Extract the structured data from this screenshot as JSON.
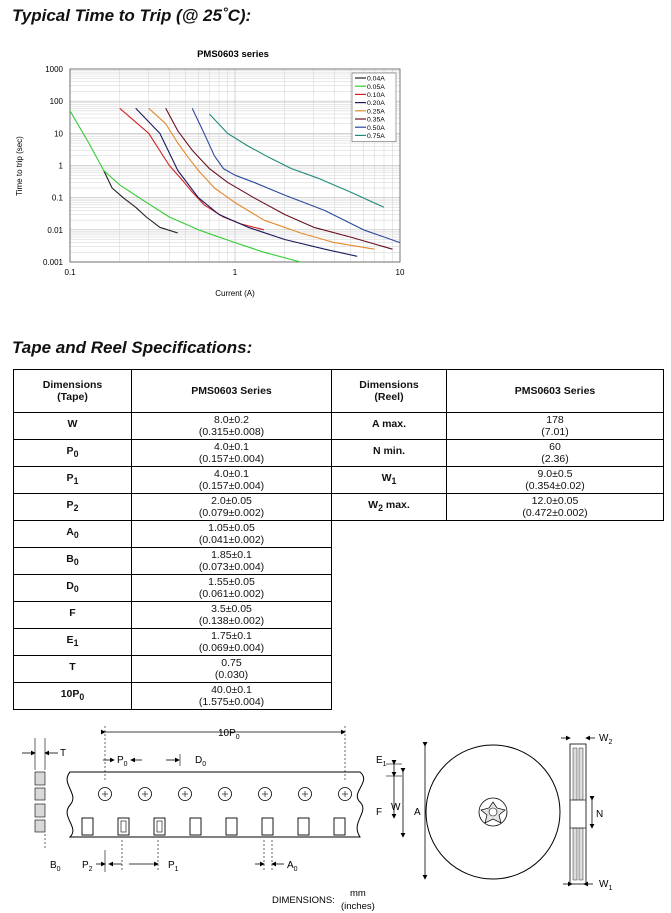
{
  "headings": {
    "time_to_trip": "Typical Time to Trip (@ 25˚C):",
    "tape_reel": "Tape and Reel Specifications:"
  },
  "chart_data": {
    "type": "line",
    "title": "PMS0603 series",
    "xlabel": "Current (A)",
    "ylabel": "Time to trip (sec)",
    "xscale": "log",
    "yscale": "log",
    "xlim": [
      0.1,
      10
    ],
    "ylim": [
      0.001,
      1000
    ],
    "x_tick_labels": [
      "0.1",
      "1",
      "10"
    ],
    "y_tick_labels": [
      "0.001",
      "0.01",
      "0.1",
      "1",
      "10",
      "100",
      "1000"
    ],
    "legend_position": "top-right",
    "series": [
      {
        "name": "0.04A",
        "color": "#222222",
        "x": [
          0.16,
          0.18,
          0.21,
          0.25,
          0.29,
          0.35,
          0.45
        ],
        "y": [
          0.7,
          0.2,
          0.1,
          0.05,
          0.025,
          0.012,
          0.008
        ]
      },
      {
        "name": "0.05A",
        "color": "#33cc33",
        "x": [
          0.1,
          0.13,
          0.16,
          0.2,
          0.27,
          0.4,
          0.6,
          1.0,
          1.5,
          2.5
        ],
        "y": [
          50,
          5,
          0.7,
          0.25,
          0.09,
          0.025,
          0.01,
          0.004,
          0.002,
          0.001
        ]
      },
      {
        "name": "0.10A",
        "color": "#d22020",
        "x": [
          0.2,
          0.3,
          0.4,
          0.48,
          0.55,
          0.65,
          0.85,
          1.1,
          1.5
        ],
        "y": [
          60,
          10,
          1,
          0.35,
          0.15,
          0.06,
          0.025,
          0.015,
          0.01
        ]
      },
      {
        "name": "0.20A",
        "color": "#1a1a5e",
        "x": [
          0.25,
          0.35,
          0.45,
          0.6,
          0.8,
          1.2,
          2,
          3.5,
          5.5
        ],
        "y": [
          60,
          10,
          0.7,
          0.1,
          0.03,
          0.012,
          0.005,
          0.0025,
          0.0015
        ]
      },
      {
        "name": "0.25A",
        "color": "#e38a2c",
        "x": [
          0.3,
          0.38,
          0.45,
          0.52,
          0.6,
          0.75,
          1.0,
          1.5,
          2.5,
          4,
          7
        ],
        "y": [
          60,
          20,
          5,
          1.8,
          0.7,
          0.2,
          0.07,
          0.02,
          0.008,
          0.004,
          0.0025
        ]
      },
      {
        "name": "0.35A",
        "color": "#6b1020",
        "x": [
          0.38,
          0.45,
          0.55,
          0.7,
          0.9,
          1.3,
          2,
          3,
          5,
          9
        ],
        "y": [
          60,
          12,
          3,
          0.8,
          0.3,
          0.1,
          0.03,
          0.012,
          0.006,
          0.0025
        ]
      },
      {
        "name": "0.50A",
        "color": "#2a4a9a",
        "x": [
          0.55,
          0.65,
          0.75,
          0.85,
          1.0,
          1.3,
          2,
          3.5,
          6,
          10
        ],
        "y": [
          60,
          10,
          2,
          0.8,
          0.5,
          0.3,
          0.12,
          0.04,
          0.01,
          0.004
        ]
      },
      {
        "name": "0.75A",
        "color": "#1f8a7a",
        "x": [
          0.7,
          0.9,
          1.2,
          1.6,
          2.2,
          3.2,
          5,
          8
        ],
        "y": [
          40,
          10,
          4,
          1.8,
          0.8,
          0.4,
          0.15,
          0.05
        ]
      }
    ]
  },
  "tape_table": {
    "headers": {
      "dim_tape": [
        "Dimensions",
        "(Tape)"
      ],
      "series_tape": "PMS0603 Series",
      "dim_reel": [
        "Dimensions",
        "(Reel)"
      ],
      "series_reel": "PMS0603 Series"
    },
    "rows": [
      {
        "label": "W",
        "sub": "",
        "mm": "8.0±0.2",
        "in": "(0.315±0.008)",
        "reel_label": "A max.",
        "reel_sub": "",
        "reel_mm": "178",
        "reel_in": "(7.01)"
      },
      {
        "label": "P",
        "sub": "0",
        "mm": "4.0±0.1",
        "in": "(0.157±0.004)",
        "reel_label": "N min.",
        "reel_sub": "",
        "reel_mm": "60",
        "reel_in": "(2.36)"
      },
      {
        "label": "P",
        "sub": "1",
        "mm": "4.0±0.1",
        "in": "(0.157±0.004)",
        "reel_label": "W",
        "reel_sub": "1",
        "reel_mm": "9.0±0.5",
        "reel_in": "(0.354±0.02)"
      },
      {
        "label": "P",
        "sub": "2",
        "mm": "2.0±0.05",
        "in": "(0.079±0.002)",
        "reel_label": "W",
        "reel_sub": "2",
        "reel_label_suffix": " max.",
        "reel_mm": "12.0±0.05",
        "reel_in": "(0.472±0.002)"
      },
      {
        "label": "A",
        "sub": "0",
        "mm": "1.05±0.05",
        "in": "(0.041±0.002)"
      },
      {
        "label": "B",
        "sub": "0",
        "mm": "1.85±0.1",
        "in": "(0.073±0.004)"
      },
      {
        "label": "D",
        "sub": "0",
        "mm": "1.55±0.05",
        "in": "(0.061±0.002)"
      },
      {
        "label": "F",
        "sub": "",
        "mm": "3.5±0.05",
        "in": "(0.138±0.002)"
      },
      {
        "label": "E",
        "sub": "1",
        "mm": "1.75±0.1",
        "in": "(0.069±0.004)"
      },
      {
        "label": "T",
        "sub": "",
        "mm": "0.75",
        "in": "(0.030)"
      },
      {
        "label": "10P",
        "sub": "0",
        "mm": "40.0±0.1",
        "in": "(1.575±0.004)"
      }
    ]
  },
  "diagram": {
    "labels": {
      "ten_p0": "10P",
      "ten_p0_sub": "0",
      "t": "T",
      "p0": "P",
      "p0_sub": "0",
      "d0": "D",
      "d0_sub": "0",
      "e1": "E",
      "e1_sub": "1",
      "f": "F",
      "w": "W",
      "a": "A",
      "w2": "W",
      "w2_sub": "2",
      "n": "N",
      "w1": "W",
      "w1_sub": "1",
      "b0": "B",
      "b0_sub": "0",
      "p2": "P",
      "p2_sub": "2",
      "p1": "P",
      "p1_sub": "1",
      "a0": "A",
      "a0_sub": "0"
    },
    "dimensions_label": "DIMENSIONS:",
    "unit_mm": "mm",
    "unit_inches": "(inches)"
  }
}
